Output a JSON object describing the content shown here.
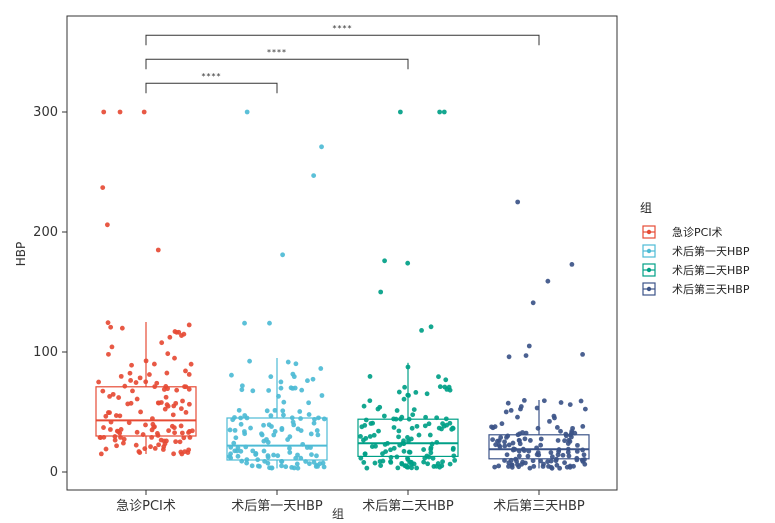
{
  "chart_data": {
    "type": "box",
    "ylabel": "HBP",
    "xlabel": "组",
    "ylim": [
      -15,
      380
    ],
    "yticks": [
      0,
      100,
      200,
      300
    ],
    "categories": [
      "急诊PCI术",
      "术后第一天HBP",
      "术后第二天HBP",
      "术后第三天HBP"
    ],
    "colors": [
      "#E64B35",
      "#4DBBD5",
      "#00A087",
      "#3C5488"
    ],
    "legend": {
      "title": "组",
      "position": "right",
      "entries": [
        "急诊PCI术",
        "术后第一天HBP",
        "术后第二天HBP",
        "术后第三天HBP"
      ]
    },
    "grid": false,
    "series": [
      {
        "name": "急诊PCI术",
        "whisker_low": 15,
        "q1": 30,
        "median": 43,
        "q3": 71,
        "whisker_high": 125,
        "outliers": [
          300,
          300,
          300,
          237,
          206,
          185
        ]
      },
      {
        "name": "术后第一天HBP",
        "whisker_low": 3,
        "q1": 10,
        "median": 22,
        "q3": 45,
        "whisker_high": 95,
        "outliers": [
          300,
          271,
          247,
          181,
          124,
          124
        ]
      },
      {
        "name": "术后第二天HBP",
        "whisker_low": 3,
        "q1": 13,
        "median": 24,
        "q3": 44,
        "whisker_high": 91,
        "outliers": [
          300,
          300,
          300,
          176,
          174,
          150,
          121,
          118
        ]
      },
      {
        "name": "术后第三天HBP",
        "whisker_low": 3,
        "q1": 11,
        "median": 19,
        "q3": 31,
        "whisker_high": 60,
        "outliers": [
          225,
          173,
          159,
          141,
          105,
          98,
          97,
          96
        ]
      }
    ],
    "significance": [
      {
        "from": 0,
        "to": 1,
        "y": 324,
        "label": "****"
      },
      {
        "from": 0,
        "to": 2,
        "y": 344,
        "label": "****"
      },
      {
        "from": 0,
        "to": 3,
        "y": 364,
        "label": "****"
      }
    ]
  }
}
